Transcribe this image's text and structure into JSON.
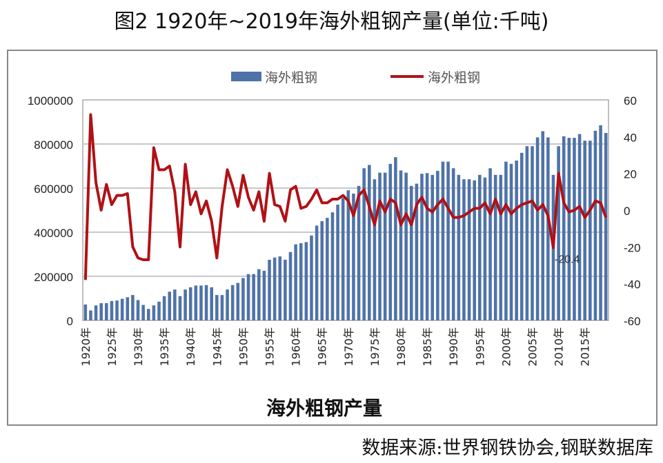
{
  "title": "图2 1920年~2019年海外粗钢产量(单位:千吨)",
  "source": "数据来源:世界钢铁协会,钢联数据库",
  "chart_data": {
    "type": "bar+line",
    "xlabel": "海外粗钢产量",
    "left_axis": {
      "ylim": [
        0,
        1000000
      ],
      "ticks": [
        "0",
        "200000",
        "400000",
        "600000",
        "800000",
        "1000000"
      ]
    },
    "right_axis": {
      "ylim": [
        -60,
        60
      ],
      "ticks": [
        "-60",
        "-40",
        "-20",
        "0",
        "20",
        "40",
        "60"
      ]
    },
    "grid": true,
    "legend": "top",
    "colors": {
      "bar": "#4f73a8",
      "line": "#b01116"
    },
    "x_tick_labels": [
      "1920年",
      "1925年",
      "1930年",
      "1935年",
      "1940年",
      "1945年",
      "1950年",
      "1955年",
      "1960年",
      "1965年",
      "1970年",
      "1975年",
      "1980年",
      "1985年",
      "1990年",
      "1995年",
      "2000年",
      "2005年",
      "2010年",
      "2015年"
    ],
    "years": [
      1920,
      1921,
      1922,
      1923,
      1924,
      1925,
      1926,
      1927,
      1928,
      1929,
      1930,
      1931,
      1932,
      1933,
      1934,
      1935,
      1936,
      1937,
      1938,
      1939,
      1940,
      1941,
      1942,
      1943,
      1944,
      1945,
      1946,
      1947,
      1948,
      1949,
      1950,
      1951,
      1952,
      1953,
      1954,
      1955,
      1956,
      1957,
      1958,
      1959,
      1960,
      1961,
      1962,
      1963,
      1964,
      1965,
      1966,
      1967,
      1968,
      1969,
      1970,
      1971,
      1972,
      1973,
      1974,
      1975,
      1976,
      1977,
      1978,
      1979,
      1980,
      1981,
      1982,
      1983,
      1984,
      1985,
      1986,
      1987,
      1988,
      1989,
      1990,
      1991,
      1992,
      1993,
      1994,
      1995,
      1996,
      1997,
      1998,
      1999,
      2000,
      2001,
      2002,
      2003,
      2004,
      2005,
      2006,
      2007,
      2008,
      2009,
      2010,
      2011,
      2012,
      2013,
      2014,
      2015,
      2016,
      2017,
      2018,
      2019
    ],
    "series": [
      {
        "name": "海外粗钢",
        "type": "bar",
        "axis": "left",
        "values": [
          72000,
          45000,
          68000,
          78000,
          78000,
          88000,
          90000,
          98000,
          105000,
          115000,
          92000,
          70000,
          52000,
          68000,
          85000,
          110000,
          130000,
          140000,
          110000,
          140000,
          150000,
          158000,
          158000,
          160000,
          150000,
          115000,
          115000,
          140000,
          160000,
          170000,
          192000,
          210000,
          210000,
          232000,
          225000,
          275000,
          285000,
          290000,
          275000,
          310000,
          345000,
          350000,
          355000,
          385000,
          430000,
          450000,
          465000,
          490000,
          525000,
          555000,
          590000,
          575000,
          610000,
          690000,
          705000,
          640000,
          670000,
          670000,
          710000,
          740000,
          680000,
          670000,
          610000,
          620000,
          665000,
          668000,
          660000,
          678000,
          720000,
          720000,
          690000,
          660000,
          640000,
          640000,
          635000,
          660000,
          648000,
          690000,
          660000,
          660000,
          720000,
          710000,
          725000,
          760000,
          790000,
          790000,
          830000,
          858000,
          830000,
          660000,
          790000,
          835000,
          828000,
          828000,
          845000,
          815000,
          815000,
          860000,
          885000,
          850000
        ]
      },
      {
        "name": "海外粗钢",
        "type": "line",
        "axis": "right",
        "values": [
          -38,
          52,
          15,
          0,
          14,
          3,
          8,
          8,
          9,
          -20,
          -26,
          -27,
          -27,
          34,
          22,
          22,
          24,
          10,
          -20,
          25,
          3,
          10,
          -2,
          5,
          -6,
          -26,
          2,
          22,
          13,
          2,
          19,
          7,
          0,
          10,
          -6,
          20,
          3,
          2,
          -6,
          11,
          13,
          1,
          2,
          6,
          11,
          4,
          4,
          6,
          6,
          8,
          5,
          -3,
          8,
          11,
          2,
          -8,
          5,
          -1,
          6,
          4,
          -8,
          -2,
          -8,
          3,
          7,
          1,
          -1,
          3,
          6,
          1,
          -4,
          -4,
          -3,
          -1,
          1,
          1,
          4,
          -2,
          6,
          -2,
          3,
          -2,
          1,
          3,
          4,
          5,
          0,
          3,
          -3,
          -20.4,
          20,
          4,
          -1,
          0,
          2,
          -4,
          0,
          5,
          4,
          -4
        ]
      }
    ],
    "annotations": [
      {
        "year": 2009,
        "text": "-20.4"
      }
    ]
  }
}
